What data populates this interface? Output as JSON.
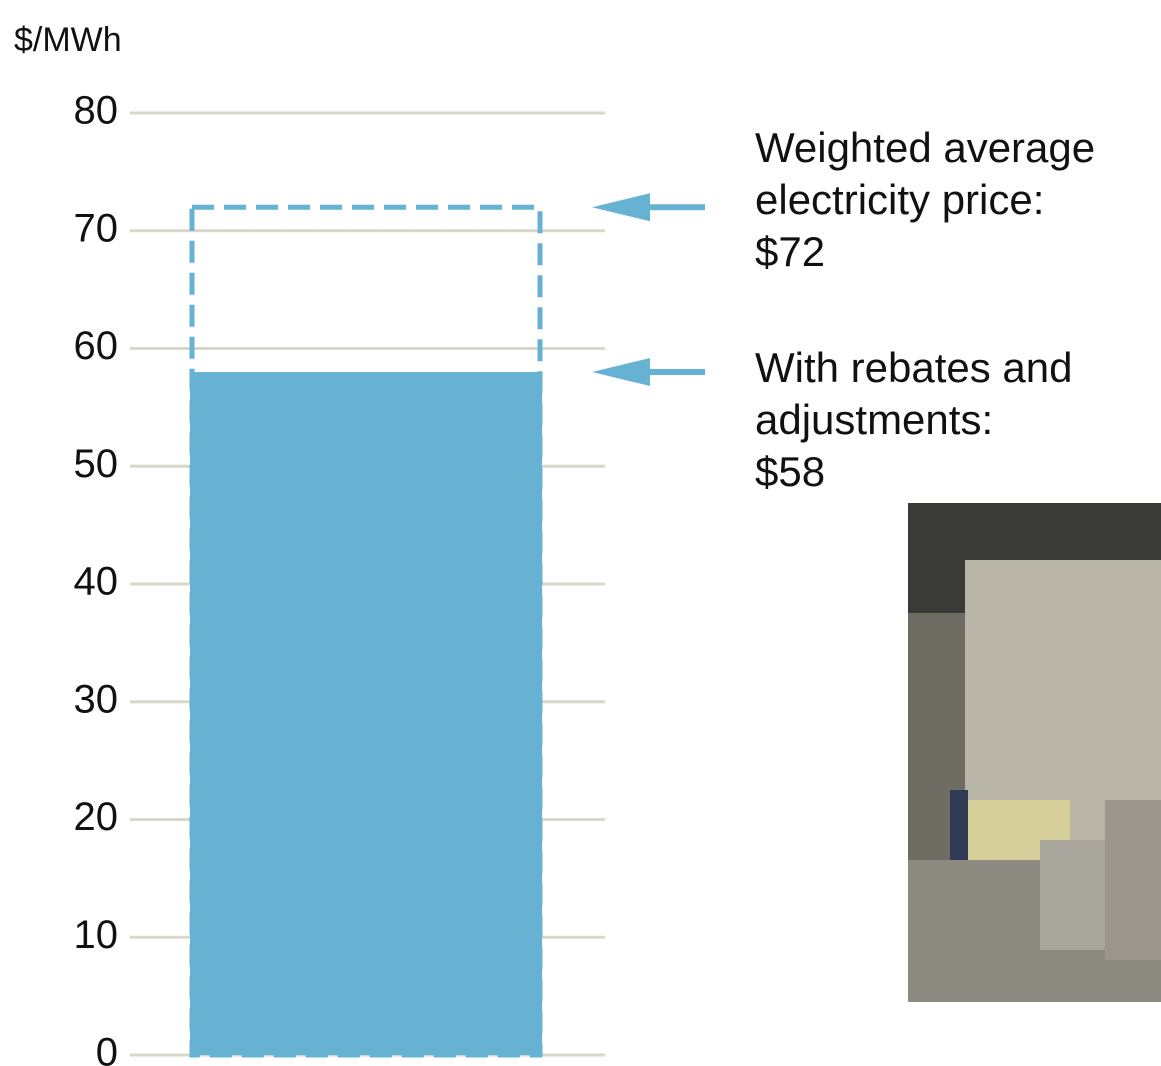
{
  "chart_data": {
    "type": "bar",
    "y_label": "$/MWh",
    "values": [
      72,
      58
    ],
    "value_labels": [
      "$72",
      "$58"
    ],
    "annotations": [
      "Weighted average electricity price:",
      "With rebates and adjustments:"
    ],
    "color": "#67b2d3",
    "grid_color": "#d9d7ca",
    "ylim": [
      0,
      80
    ],
    "yticks": [
      0,
      10,
      20,
      30,
      40,
      50,
      60,
      70,
      80
    ],
    "grid": true
  }
}
